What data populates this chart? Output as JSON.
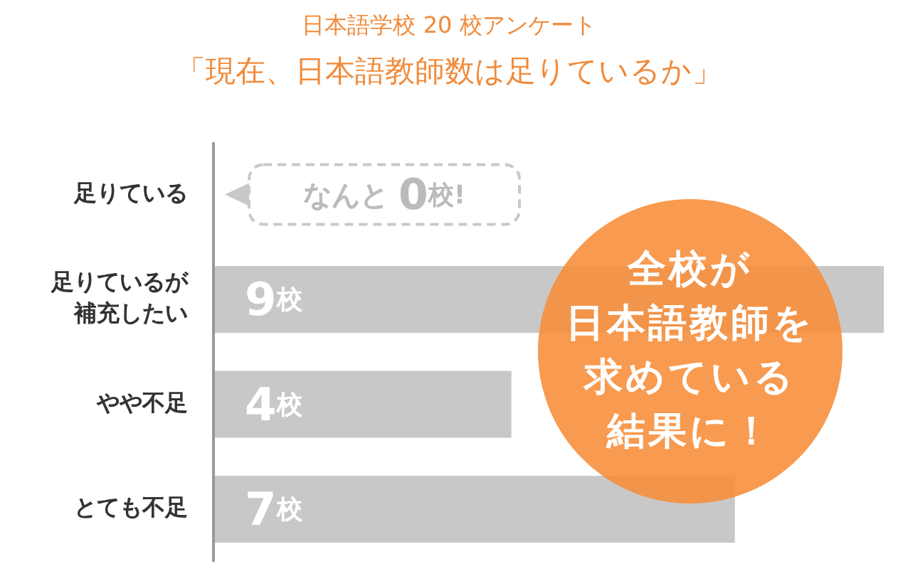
{
  "chart_data": {
    "type": "bar",
    "orientation": "horizontal",
    "title": "日本語学校 20 校アンケート",
    "subtitle": "「現在、日本語教師数は足りているか」",
    "categories": [
      "足りている",
      "足りているが補充したい",
      "やや不足",
      "とても不足"
    ],
    "values": [
      0,
      9,
      4,
      7
    ],
    "color": "#c8c8c8",
    "value_labels": [
      "なんと 0校!",
      "9校",
      "4校",
      "7校"
    ],
    "annotations": [
      "全校が日本語教師を求めている結果に！"
    ]
  }
}
